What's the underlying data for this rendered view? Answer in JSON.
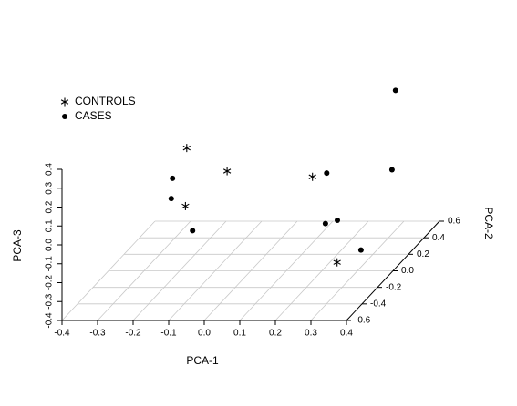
{
  "chart_data": {
    "type": "scatter3d",
    "xlabel": "PCA-1",
    "ylabel": "PCA-2",
    "zlabel": "PCA-3",
    "xlim": [
      -0.4,
      0.4
    ],
    "xticks": [
      -0.4,
      -0.3,
      -0.2,
      -0.1,
      {
        "value": 0,
        "label": "0.0"
      },
      0.1,
      0.2,
      0.3,
      0.4
    ],
    "ylim": [
      -0.6,
      0.6
    ],
    "yticks": [
      -0.6,
      -0.4,
      -0.2,
      {
        "value": 0,
        "label": "0.0"
      },
      0.2,
      0.4,
      0.6
    ],
    "zlim": [
      -0.4,
      0.4
    ],
    "zticks": [
      -0.4,
      -0.3,
      -0.2,
      -0.1,
      {
        "value": 0,
        "label": "0.0"
      },
      0.1,
      0.2,
      0.3,
      0.4
    ],
    "grid": true,
    "legend": "topleft",
    "series": [
      {
        "name": "CONTROLS",
        "marker": "asterisk",
        "color": "#000000",
        "x": [
          -0.18,
          -0.11,
          0.13,
          -0.14,
          0.33
        ],
        "y": [
          0.0,
          0.2,
          0.2,
          -0.2,
          -0.4
        ],
        "z": [
          0.25,
          0.04,
          0.01,
          0.03,
          -0.18
        ]
      },
      {
        "name": "CASES",
        "marker": "dot",
        "color": "#000000",
        "x": [
          0.32,
          -0.22,
          0.17,
          0.31,
          -0.18,
          0.2,
          0.21,
          -0.12,
          0.31
        ],
        "y": [
          0.4,
          0.0,
          0.2,
          0.4,
          -0.2,
          0.2,
          0.0,
          -0.2,
          0.0
        ],
        "z": [
          0.38,
          0.09,
          0.03,
          -0.04,
          0.07,
          -0.22,
          -0.15,
          -0.1,
          -0.29
        ]
      }
    ]
  }
}
